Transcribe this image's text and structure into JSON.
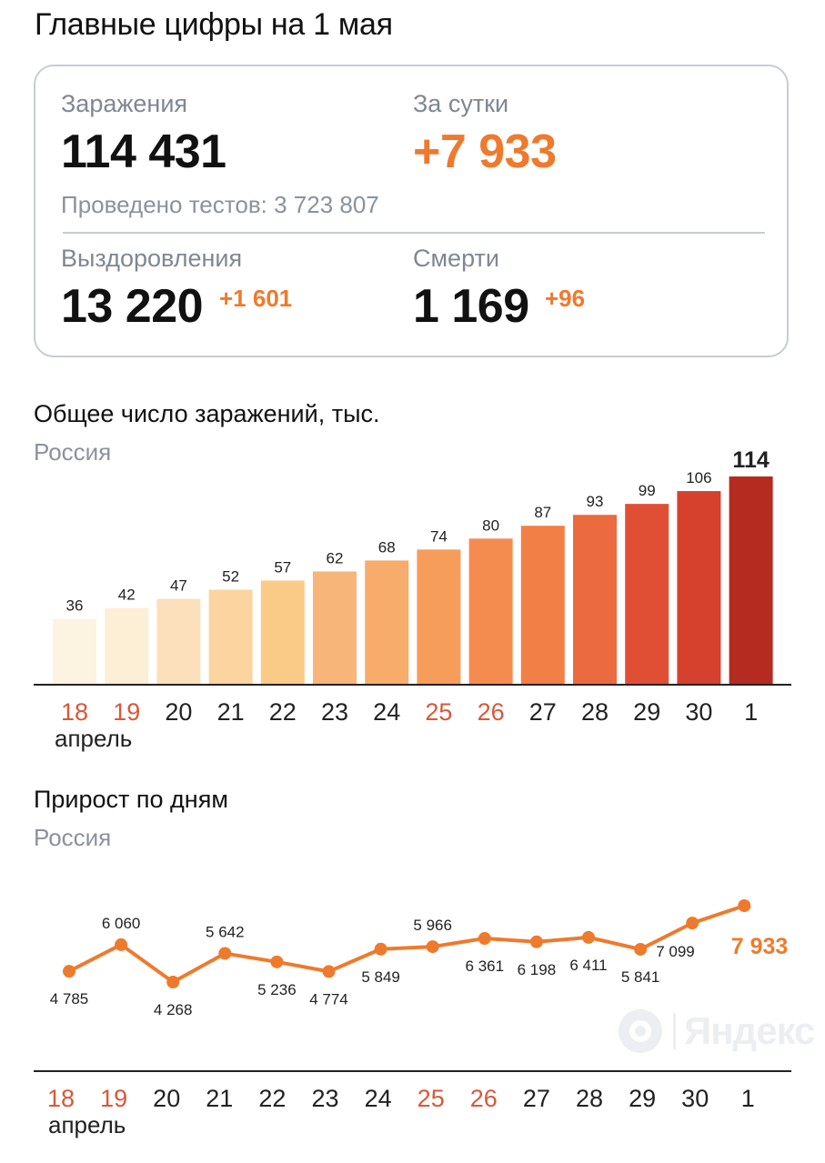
{
  "page_title": "Главные цифры на 1 мая",
  "stats": {
    "infections_label": "Заражения",
    "infections_value": "114 431",
    "daily_label": "За сутки",
    "daily_value": "+7 933",
    "tests_text": "Проведено тестов: 3 723 807",
    "recoveries_label": "Выздоровления",
    "recoveries_value": "13 220",
    "recoveries_delta": "+1 601",
    "deaths_label": "Смерти",
    "deaths_value": "1 169",
    "deaths_delta": "+96"
  },
  "colors": {
    "accent": "#ee7a2d",
    "holiday": "#d9573a",
    "bar_scale": [
      "#fdf3e1",
      "#fdeed6",
      "#fce0bb",
      "#fbd49f",
      "#f9cb86",
      "#f8b57a",
      "#f8ac6c",
      "#f79d5b",
      "#f58c4f",
      "#f27f46",
      "#ec6a3f",
      "#e04f34",
      "#d6412d",
      "#b52b20"
    ]
  },
  "watermark": "Яндекс",
  "chart_data": [
    {
      "type": "bar",
      "title": "Общее число заражений, тыс.",
      "subtitle": "Россия",
      "categories": [
        "18",
        "19",
        "20",
        "21",
        "22",
        "23",
        "24",
        "25",
        "26",
        "27",
        "28",
        "29",
        "30",
        "1"
      ],
      "holiday_categories": [
        "18",
        "19",
        "25",
        "26"
      ],
      "month_label": "апрель",
      "values": [
        36,
        42,
        47,
        52,
        57,
        62,
        68,
        74,
        80,
        87,
        93,
        99,
        106,
        114
      ],
      "ylim": [
        0,
        114
      ],
      "grid": false
    },
    {
      "type": "line",
      "title": "Прирост по дням",
      "subtitle": "Россия",
      "categories": [
        "18",
        "19",
        "20",
        "21",
        "22",
        "23",
        "24",
        "25",
        "26",
        "27",
        "28",
        "29",
        "30",
        "1"
      ],
      "holiday_categories": [
        "18",
        "19",
        "25",
        "26"
      ],
      "month_label": "апрель",
      "values": [
        4785,
        6060,
        4268,
        5642,
        5236,
        4774,
        5849,
        5966,
        6361,
        6198,
        6411,
        5841,
        7099,
        7933
      ],
      "value_labels": [
        "4 785",
        "6 060",
        "4 268",
        "5 642",
        "5 236",
        "4 774",
        "5 849",
        "5 966",
        "6 361",
        "6 198",
        "6 411",
        "5 841",
        "7 099",
        "7 933"
      ],
      "ylim": [
        4268,
        7933
      ],
      "grid": false
    }
  ]
}
